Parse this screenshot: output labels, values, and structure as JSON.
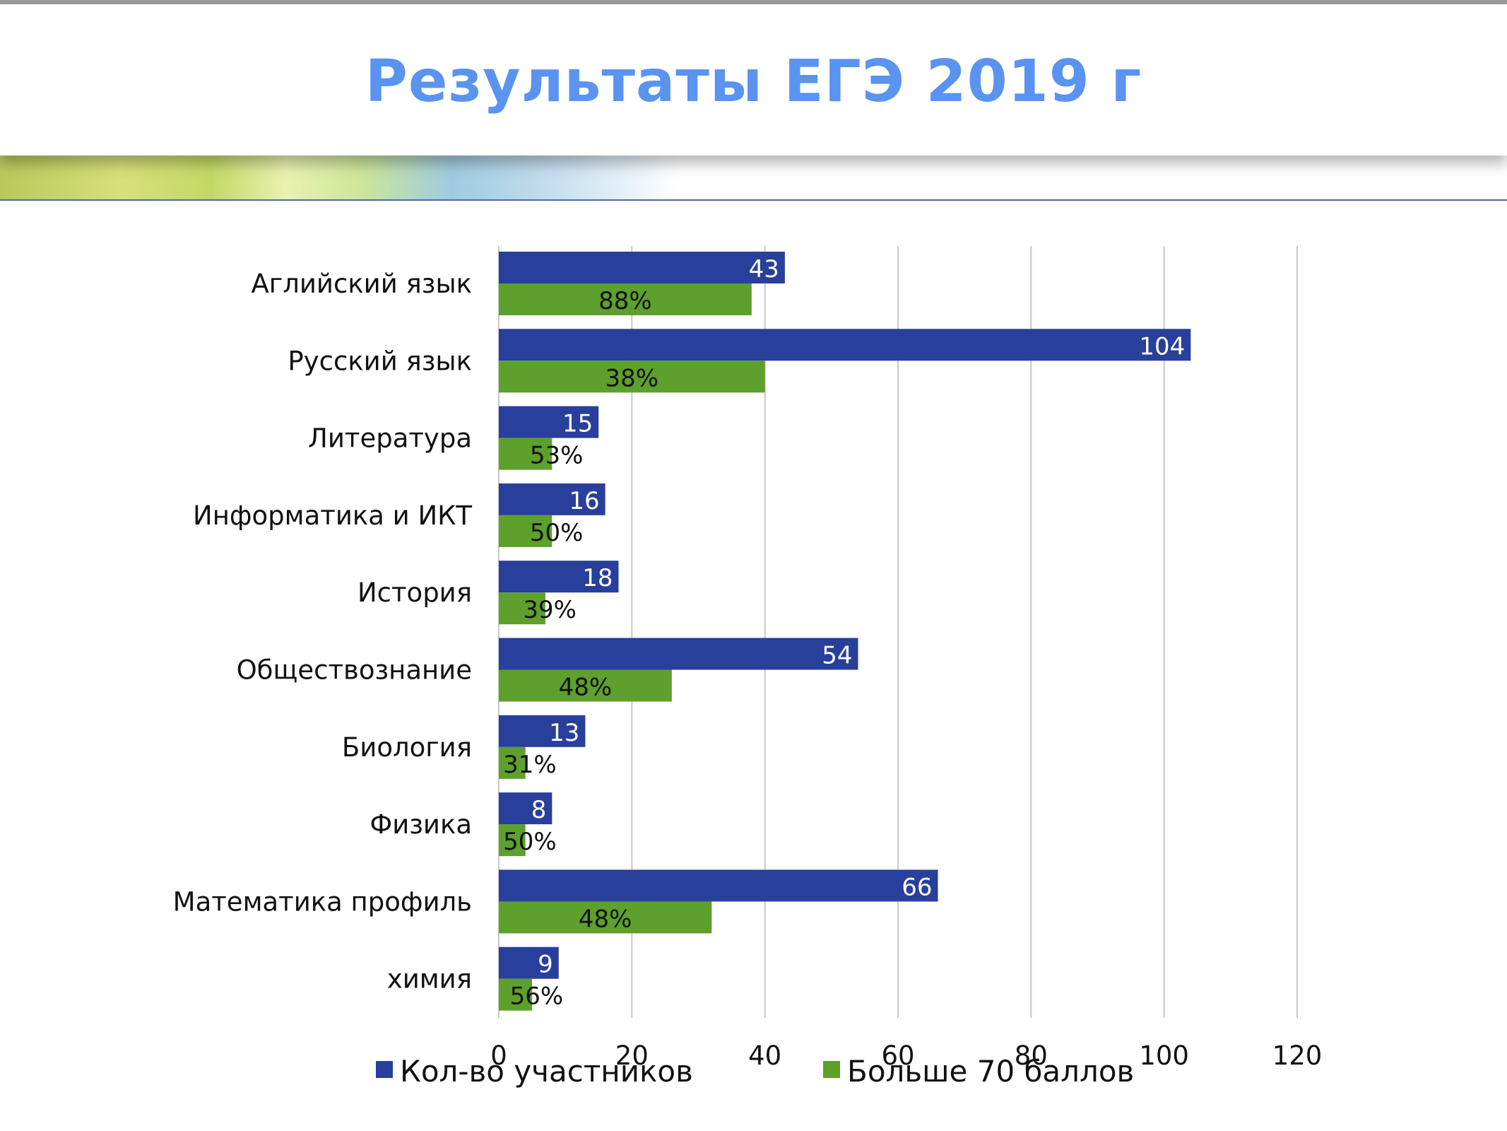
{
  "slide": {
    "title": "Результаты ЕГЭ 2019 г"
  },
  "colors": {
    "title": "#5a93f0",
    "series_participants": "#283f9b",
    "series_above70": "#5da02d",
    "grid": "#c8c8c8"
  },
  "chart_data": {
    "type": "bar",
    "orientation": "horizontal",
    "categories": [
      "Аглийский язык",
      "Русский язык",
      "Литература",
      "Информатика и ИКТ",
      "История",
      "Обществознание",
      "Биология",
      "Физика",
      "Математика профиль",
      "химия"
    ],
    "series": [
      {
        "name": "Кол-во участников",
        "values": [
          43,
          104,
          15,
          16,
          18,
          54,
          13,
          8,
          66,
          9
        ],
        "labels": [
          "43",
          "104",
          "15",
          "16",
          "18",
          "54",
          "13",
          "8",
          "66",
          "9"
        ]
      },
      {
        "name": "Больше 70 баллов",
        "values": [
          38,
          40,
          8,
          8,
          7,
          26,
          4,
          4,
          32,
          5
        ],
        "labels": [
          "88%",
          "38%",
          "53%",
          "50%",
          "39%",
          "48%",
          "31%",
          "50%",
          "48%",
          "56%"
        ]
      }
    ],
    "xlim": [
      0,
      120
    ],
    "xticks": [
      "0",
      "20",
      "40",
      "60",
      "80",
      "100",
      "120"
    ],
    "grid": true,
    "legend": "bottom"
  }
}
